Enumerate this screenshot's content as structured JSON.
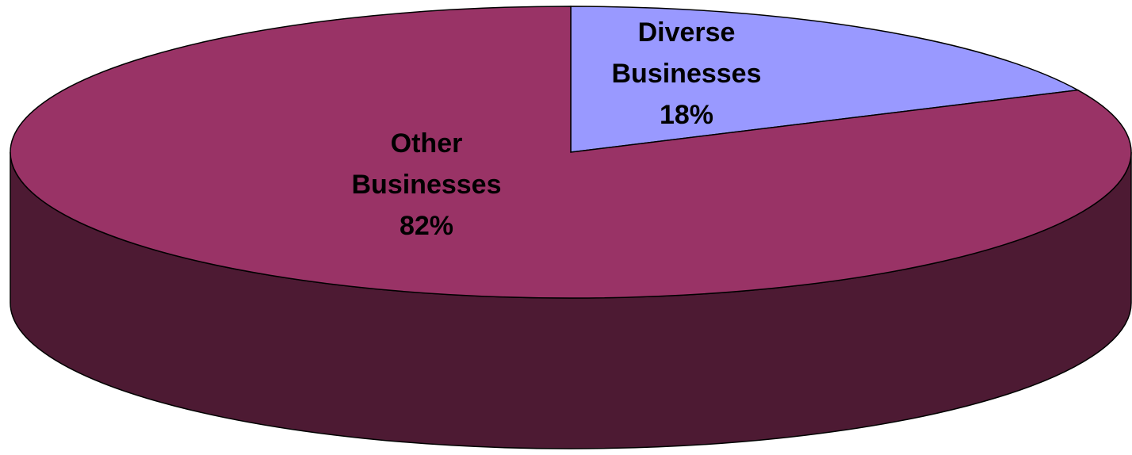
{
  "chart_data": {
    "type": "pie",
    "style": "3d-tilted",
    "title": "",
    "legend": "none",
    "slices": [
      {
        "label_lines": [
          "Diverse",
          "Businesses"
        ],
        "value": 18,
        "value_label": "18%",
        "color": "#9999ff"
      },
      {
        "label_lines": [
          "Other",
          "Businesses"
        ],
        "value": 82,
        "value_label": "82%",
        "color": "#993366"
      }
    ]
  },
  "colors": {
    "side": "#4d1a33",
    "outline": "#000000"
  }
}
